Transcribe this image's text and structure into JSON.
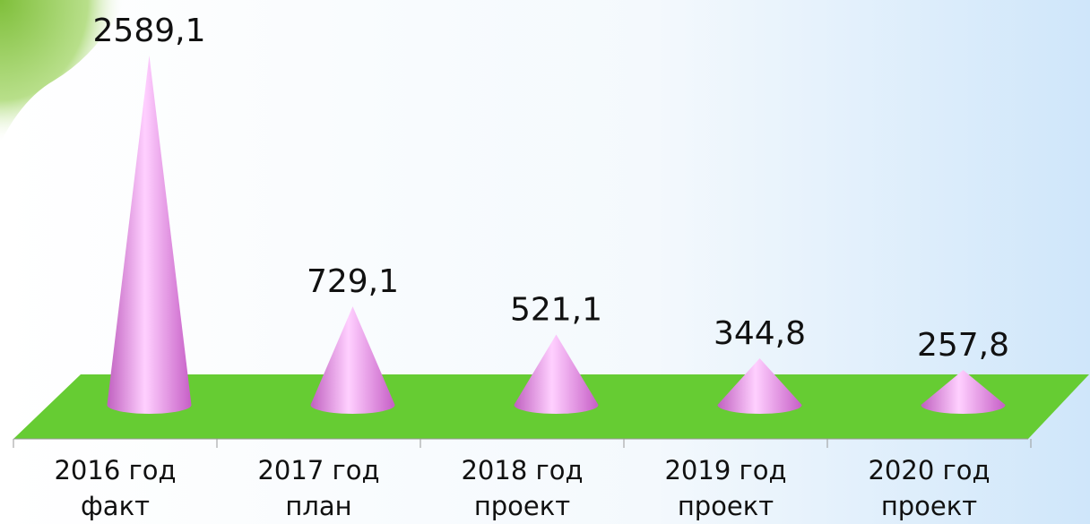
{
  "chart_data": {
    "type": "cone",
    "categories": [
      "2016 год\nфакт",
      "2017 год\nплан",
      "2018 год\nпроект",
      "2019 год\nпроект",
      "2020 год\nпроект"
    ],
    "values": [
      2589.1,
      729.1,
      521.1,
      344.8,
      257.8
    ],
    "value_labels": [
      "2589,1",
      "729,1",
      "521,1",
      "344,8",
      "257,8"
    ],
    "color": "#ee99ee",
    "floor_color": "#66cc33"
  }
}
